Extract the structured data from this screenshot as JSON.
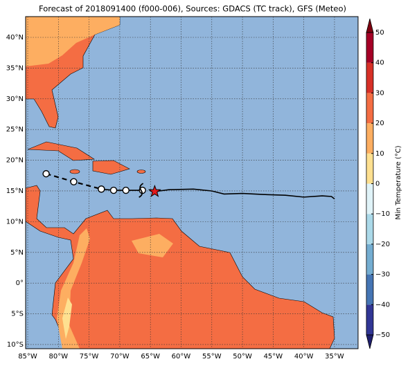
{
  "chart_data": {
    "type": "map",
    "title": "Forecast of 2018091400 (f000-006), Sources: GDACS (TC track), GFS (Meteo)",
    "xlim": [
      -85.34,
      -31.16
    ],
    "ylim": [
      -10.68,
      43.38
    ],
    "xticks": [
      {
        "value": -85,
        "label": "85°W"
      },
      {
        "value": -80,
        "label": "80°W"
      },
      {
        "value": -75,
        "label": "75°W"
      },
      {
        "value": -70,
        "label": "70°W"
      },
      {
        "value": -65,
        "label": "65°W"
      },
      {
        "value": -60,
        "label": "60°W"
      },
      {
        "value": -55,
        "label": "55°W"
      },
      {
        "value": -50,
        "label": "50°W"
      },
      {
        "value": -45,
        "label": "45°W"
      },
      {
        "value": -40,
        "label": "40°W"
      },
      {
        "value": -35,
        "label": "35°W"
      }
    ],
    "yticks": [
      {
        "value": -10,
        "label": "10°S"
      },
      {
        "value": -5,
        "label": "5°S"
      },
      {
        "value": 0,
        "label": "0°"
      },
      {
        "value": 5,
        "label": "5°N"
      },
      {
        "value": 10,
        "label": "10°N"
      },
      {
        "value": 15,
        "label": "15°N"
      },
      {
        "value": 20,
        "label": "20°N"
      },
      {
        "value": 25,
        "label": "25°N"
      },
      {
        "value": 30,
        "label": "30°N"
      },
      {
        "value": 35,
        "label": "35°N"
      },
      {
        "value": 40,
        "label": "40°N"
      }
    ],
    "grid": true,
    "colorbar": {
      "label": "Min Temperature (°C)",
      "ticks": [
        {
          "value": -50,
          "label": "−50"
        },
        {
          "value": -40,
          "label": "−40"
        },
        {
          "value": -30,
          "label": "−30"
        },
        {
          "value": -20,
          "label": "−20"
        },
        {
          "value": -10,
          "label": "−10"
        },
        0,
        10,
        20,
        30,
        40,
        50
      ],
      "colors": [
        "#313695",
        "#4575b4",
        "#74add1",
        "#abd9e9",
        "#e0f3f8",
        "#fee090",
        "#fdae61",
        "#f46d43",
        "#d73027",
        "#a50026"
      ],
      "under_color": "#1f1f6e",
      "over_color": "#7f0010"
    },
    "track_past": {
      "lon": [
        -82,
        -77.5,
        -73
      ],
      "lat": [
        17.8,
        16.5,
        15.3
      ]
    },
    "track_recent": {
      "lon": [
        -73,
        -71,
        -69,
        -66.3
      ],
      "lat": [
        15.3,
        15.1,
        15.1,
        15.1
      ]
    },
    "forecast": {
      "lon": [
        -64.3,
        -62,
        -58,
        -55,
        -53,
        -50,
        -46,
        -43,
        -40,
        -37,
        -35.5,
        -35
      ],
      "lat": [
        14.9,
        15.2,
        15.3,
        15,
        14.5,
        14.6,
        14.4,
        14.3,
        14.0,
        14.2,
        14.1,
        13.7
      ]
    },
    "position": {
      "lon": -64.3,
      "lat": 14.9
    }
  }
}
